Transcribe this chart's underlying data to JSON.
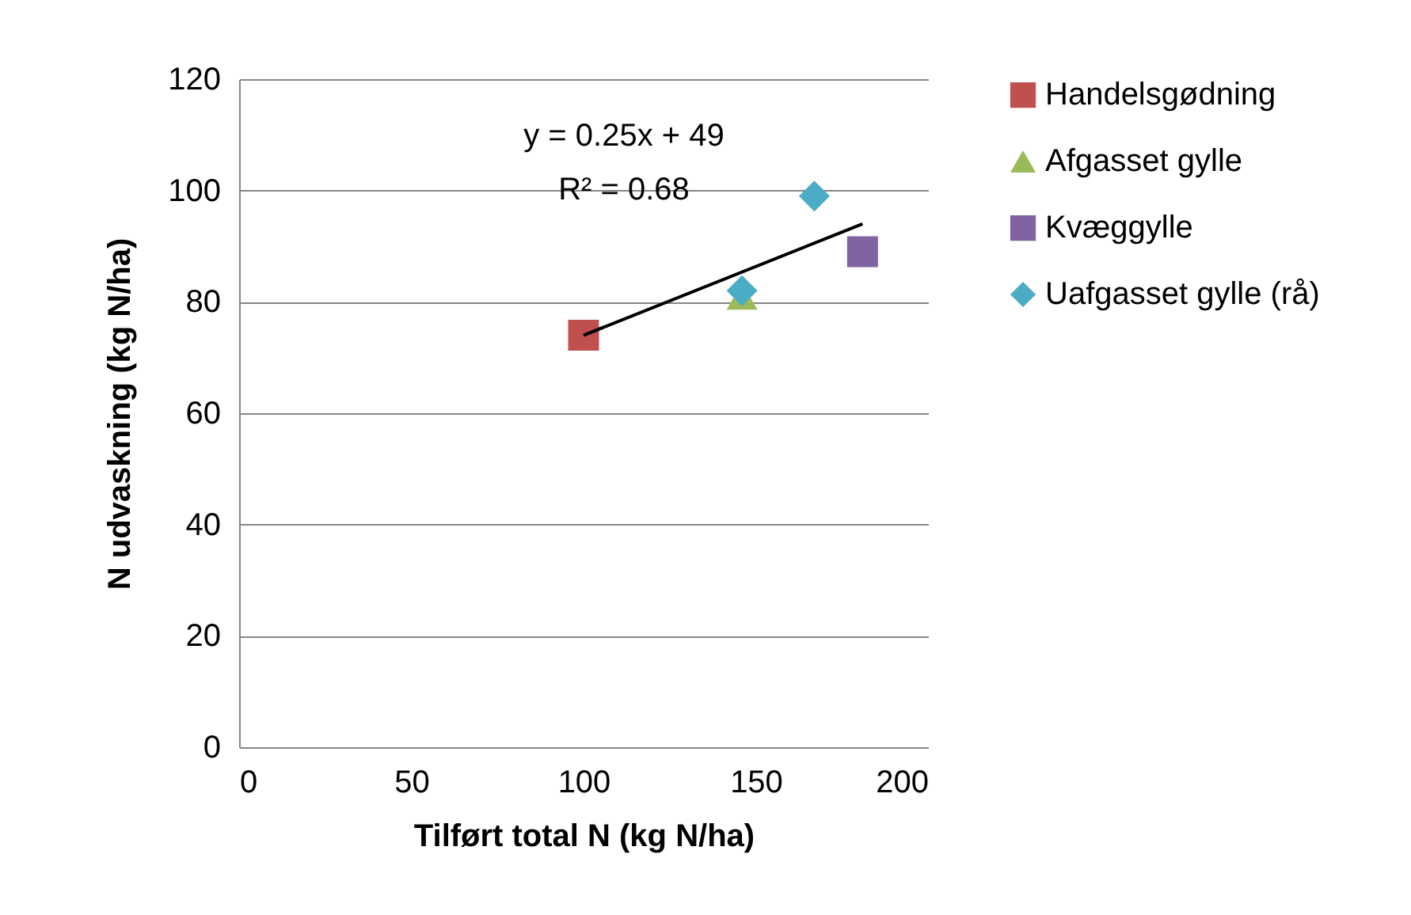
{
  "chart_data": {
    "type": "scatter",
    "xlabel": "Tilført total N (kg N/ha)",
    "ylabel": "N udvaskning (kg N/ha)",
    "xlim": [
      0,
      200
    ],
    "xticks": [
      0,
      50,
      100,
      150,
      200
    ],
    "ylim": [
      0,
      120
    ],
    "yticks": [
      0,
      20,
      40,
      60,
      80,
      100,
      120
    ],
    "grid": "y",
    "legend": "right",
    "annotations": [
      "y = 0.25x + 49",
      "R² = 0.68"
    ],
    "series": [
      {
        "name": "Handelsgødning",
        "color": "#c0504d",
        "marker": "square",
        "x": [
          100
        ],
        "values": [
          74
        ]
      },
      {
        "name": "Afgasset gylle",
        "color": "#9bbb59",
        "marker": "triangle",
        "x": [
          146
        ],
        "values": [
          81
        ]
      },
      {
        "name": "Kvæggylle",
        "color": "#8064a2",
        "marker": "square",
        "x": [
          181
        ],
        "values": [
          89
        ]
      },
      {
        "name": "Uafgasset gylle (rå)",
        "color": "#4bacc6",
        "marker": "diamond",
        "x": [
          167,
          146
        ],
        "values": [
          99,
          82
        ]
      },
      {
        "type": "line",
        "color": "#000000",
        "x": [
          100,
          181
        ],
        "values": [
          74,
          94
        ]
      }
    ]
  }
}
